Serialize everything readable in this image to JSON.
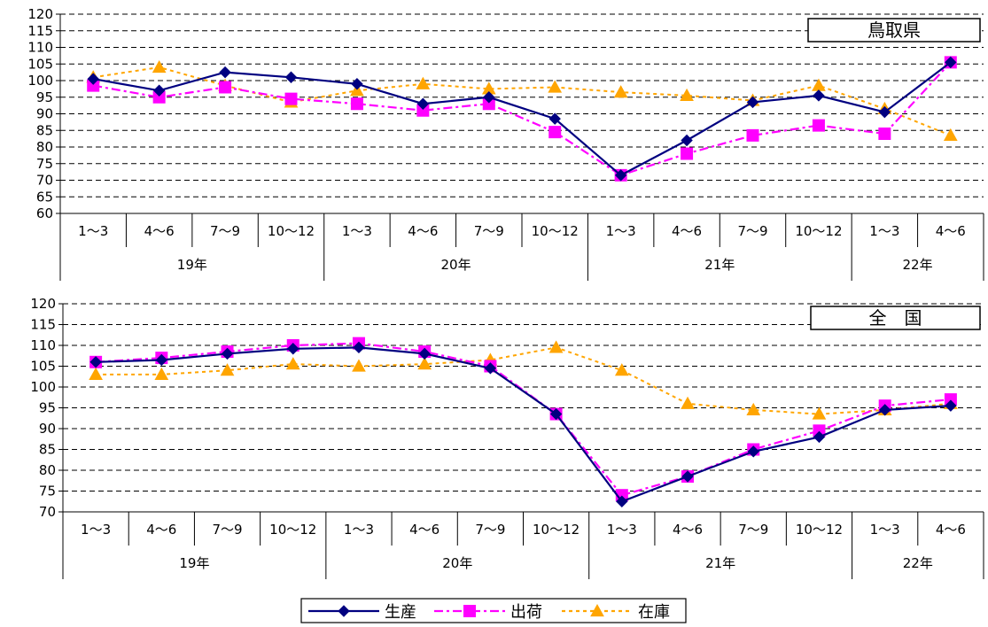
{
  "chart_data": [
    {
      "type": "line",
      "region_label": "鳥取県",
      "years": [
        {
          "label": "19年",
          "span": 4
        },
        {
          "label": "20年",
          "span": 4
        },
        {
          "label": "21年",
          "span": 4
        },
        {
          "label": "22年",
          "span": 2
        }
      ],
      "categories": [
        "1～3",
        "4～6",
        "7～9",
        "10～12",
        "1～3",
        "4～6",
        "7～9",
        "10～12",
        "1～3",
        "4～6",
        "7～9",
        "10～12",
        "1～3",
        "4～6"
      ],
      "series": [
        {
          "name": "生産",
          "values": [
            100.5,
            97,
            102.5,
            101,
            99,
            93,
            95,
            88.5,
            71.5,
            82,
            93.5,
            95.5,
            90.5,
            105.5
          ]
        },
        {
          "name": "出荷",
          "values": [
            98.5,
            95,
            98,
            94.5,
            93,
            91,
            93,
            84.5,
            71.5,
            78,
            83.5,
            86.5,
            84,
            105.5
          ]
        },
        {
          "name": "在庫",
          "values": [
            101,
            104,
            98.5,
            93.5,
            97,
            99,
            97.5,
            98,
            96.5,
            95.5,
            94,
            98.5,
            91.5,
            83.5
          ]
        }
      ],
      "ylim": [
        60,
        120
      ],
      "yticks": [
        60,
        65,
        70,
        75,
        80,
        85,
        90,
        95,
        100,
        105,
        110,
        115,
        120
      ],
      "grid": true
    },
    {
      "type": "line",
      "region_label": "全　国",
      "years": [
        {
          "label": "19年",
          "span": 4
        },
        {
          "label": "20年",
          "span": 4
        },
        {
          "label": "21年",
          "span": 4
        },
        {
          "label": "22年",
          "span": 2
        }
      ],
      "categories": [
        "1～3",
        "4～6",
        "7～9",
        "10～12",
        "1～3",
        "4～6",
        "7～9",
        "10～12",
        "1～3",
        "4～6",
        "7～9",
        "10～12",
        "1～3",
        "4～6"
      ],
      "series": [
        {
          "name": "生産",
          "values": [
            106,
            106.5,
            108,
            109.2,
            109.5,
            108,
            104.5,
            93.5,
            72.5,
            78.5,
            84.5,
            88,
            94.5,
            95.5
          ]
        },
        {
          "name": "出荷",
          "values": [
            106,
            107,
            108.5,
            110,
            110.5,
            108.5,
            105,
            93.5,
            74,
            78.5,
            85,
            89.5,
            95.5,
            97
          ]
        },
        {
          "name": "在庫",
          "values": [
            103,
            103,
            104,
            105.5,
            105,
            105.5,
            106.5,
            109.5,
            104,
            96,
            94.5,
            93.5,
            94.5,
            96
          ]
        }
      ],
      "ylim": [
        70,
        120
      ],
      "yticks": [
        70,
        75,
        80,
        85,
        90,
        95,
        100,
        105,
        110,
        115,
        120
      ],
      "grid": true
    }
  ],
  "legend": {
    "items": [
      {
        "name": "生産",
        "color": "#000080",
        "marker": "diamond",
        "dash": "solid"
      },
      {
        "name": "出荷",
        "color": "#ff00ff",
        "marker": "square",
        "dash": "dash-dot"
      },
      {
        "name": "在庫",
        "color": "#ffa500",
        "marker": "triangle",
        "dash": "dotted"
      }
    ],
    "placement": "bottom-center"
  }
}
